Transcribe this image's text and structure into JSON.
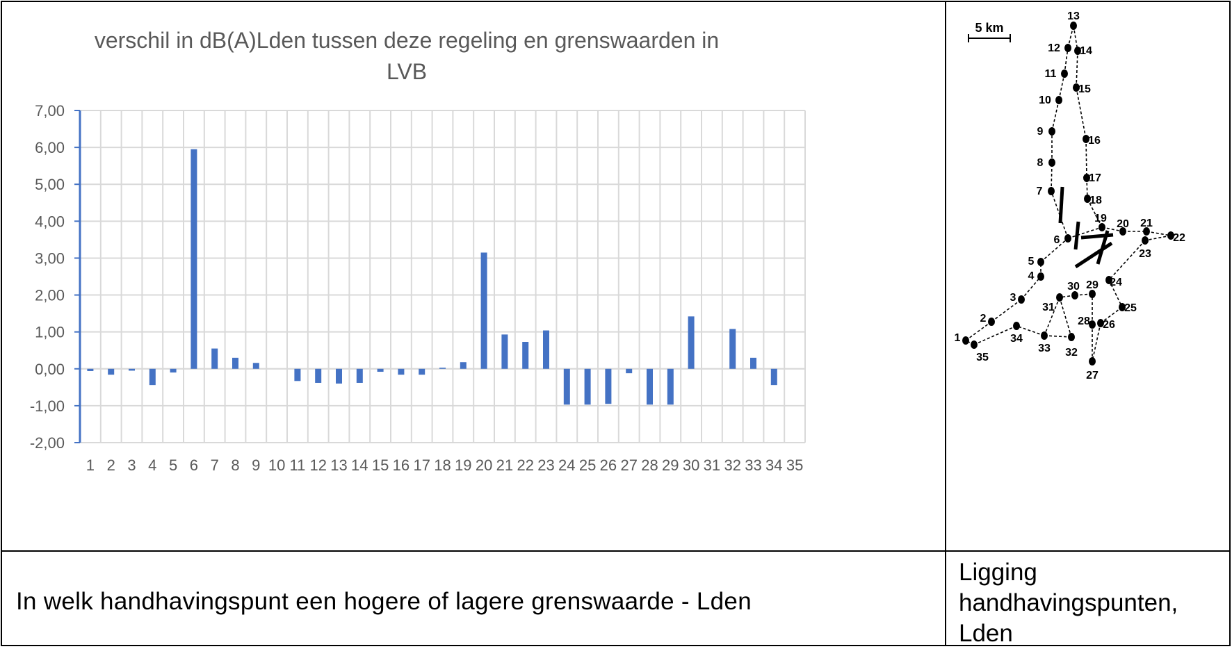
{
  "chart_data": {
    "type": "bar",
    "title_lines": [
      "verschil in dB(A)Lden tussen deze regeling en grenswaarden in",
      "LVB"
    ],
    "categories": [
      "1",
      "2",
      "3",
      "4",
      "5",
      "6",
      "7",
      "8",
      "9",
      "10",
      "11",
      "12",
      "13",
      "14",
      "15",
      "16",
      "17",
      "18",
      "19",
      "20",
      "21",
      "22",
      "23",
      "24",
      "25",
      "26",
      "27",
      "28",
      "29",
      "30",
      "31",
      "32",
      "33",
      "34",
      "35"
    ],
    "values": [
      -0.06,
      -0.16,
      -0.05,
      -0.44,
      -0.1,
      5.95,
      0.55,
      0.3,
      0.16,
      0,
      -0.33,
      -0.38,
      -0.4,
      -0.38,
      -0.08,
      -0.16,
      -0.16,
      0.03,
      0.18,
      3.15,
      0.93,
      0.73,
      1.04,
      -0.97,
      -0.97,
      -0.95,
      -0.12,
      -0.97,
      -0.97,
      1.42,
      0,
      1.08,
      0.3,
      -0.44,
      0
    ],
    "ylim": [
      -2,
      7
    ],
    "yticks": [
      "-2,00",
      "-1,00",
      "0,00",
      "1,00",
      "2,00",
      "3,00",
      "4,00",
      "5,00",
      "6,00",
      "7,00"
    ],
    "grid": true,
    "bar_color": "#4472C4"
  },
  "map": {
    "scale_label": "5 km",
    "points": [
      {
        "label": "1"
      },
      {
        "label": "2"
      },
      {
        "label": "3"
      },
      {
        "label": "4"
      },
      {
        "label": "5"
      },
      {
        "label": "6"
      },
      {
        "label": "7"
      },
      {
        "label": "8"
      },
      {
        "label": "9"
      },
      {
        "label": "10"
      },
      {
        "label": "11"
      },
      {
        "label": "12"
      },
      {
        "label": "13"
      },
      {
        "label": "14"
      },
      {
        "label": "15"
      },
      {
        "label": "16"
      },
      {
        "label": "17"
      },
      {
        "label": "18"
      },
      {
        "label": "19"
      },
      {
        "label": "20"
      },
      {
        "label": "21"
      },
      {
        "label": "22"
      },
      {
        "label": "23"
      },
      {
        "label": "24"
      },
      {
        "label": "25"
      },
      {
        "label": "26"
      },
      {
        "label": "27"
      },
      {
        "label": "28"
      },
      {
        "label": "29"
      },
      {
        "label": "30"
      },
      {
        "label": "31"
      },
      {
        "label": "32"
      },
      {
        "label": "33"
      },
      {
        "label": "34"
      },
      {
        "label": "35"
      }
    ]
  },
  "caption": "In welk handhavingspunt een hogere of lagere grenswaarde - Lden",
  "map_caption_lines": [
    "Ligging",
    "handhavingspunten,",
    "Lden"
  ]
}
